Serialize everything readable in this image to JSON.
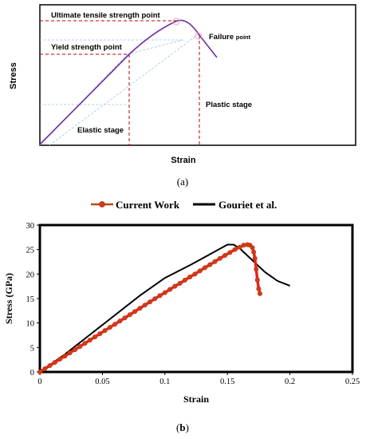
{
  "chart_data": [
    {
      "type": "line",
      "panel_label": "(a)",
      "xlabel": "Strain",
      "ylabel": "Stress",
      "annotations": {
        "uts": "Ultimate tensile strength point",
        "yield": "Yield strength point",
        "failure_main": "Failure",
        "failure_small": "point",
        "elastic": "Elastic stage",
        "plastic": "Plastic stage"
      },
      "colors": {
        "curve": "#7030a0",
        "guide": "#c00000",
        "grid": "#9dc3e6"
      }
    },
    {
      "type": "line",
      "panel_label": "(b)",
      "xlabel": "Strain",
      "ylabel": "Stress (GPa)",
      "xlim": [
        0,
        0.25
      ],
      "ylim": [
        0,
        30
      ],
      "xticks": [
        "0",
        "0.05",
        "0.1",
        "0.15",
        "0.2",
        "0.25"
      ],
      "yticks": [
        "0",
        "5",
        "10",
        "15",
        "20",
        "25",
        "30"
      ],
      "legend_position": "top-center",
      "series": [
        {
          "name": "Current Work",
          "color": "#e8211a",
          "marker_color": "#b54a16",
          "x": [
            0,
            0.004,
            0.008,
            0.012,
            0.016,
            0.02,
            0.024,
            0.028,
            0.032,
            0.036,
            0.04,
            0.044,
            0.048,
            0.052,
            0.056,
            0.06,
            0.064,
            0.068,
            0.072,
            0.076,
            0.08,
            0.084,
            0.088,
            0.092,
            0.096,
            0.1,
            0.104,
            0.108,
            0.112,
            0.116,
            0.12,
            0.124,
            0.128,
            0.132,
            0.136,
            0.14,
            0.144,
            0.148,
            0.152,
            0.156,
            0.16,
            0.163,
            0.166,
            0.168,
            0.17,
            0.171,
            0.172,
            0.173,
            0.174,
            0.175,
            0.176
          ],
          "y": [
            0,
            0.65,
            1.3,
            1.95,
            2.6,
            3.25,
            3.9,
            4.55,
            5.2,
            5.85,
            6.5,
            7.15,
            7.8,
            8.45,
            9.1,
            9.75,
            10.4,
            11.05,
            11.7,
            12.35,
            13.0,
            13.65,
            14.3,
            14.95,
            15.6,
            16.2,
            16.85,
            17.5,
            18.1,
            18.75,
            19.4,
            20.0,
            20.65,
            21.3,
            21.9,
            22.55,
            23.2,
            23.8,
            24.4,
            25.0,
            25.5,
            25.9,
            26.0,
            25.9,
            25.4,
            24.5,
            23.2,
            21.0,
            18.8,
            17.0,
            16.0
          ]
        },
        {
          "name": "Gouriet et al.",
          "color": "#000000",
          "x": [
            0,
            0.02,
            0.04,
            0.06,
            0.08,
            0.1,
            0.12,
            0.13,
            0.14,
            0.15,
            0.155,
            0.16,
            0.17,
            0.18,
            0.19,
            0.2
          ],
          "y": [
            0,
            3.6,
            7.6,
            11.6,
            15.6,
            19.2,
            21.8,
            23.2,
            24.6,
            26.0,
            26.0,
            25.2,
            22.8,
            20.4,
            18.6,
            17.6
          ]
        }
      ]
    }
  ]
}
